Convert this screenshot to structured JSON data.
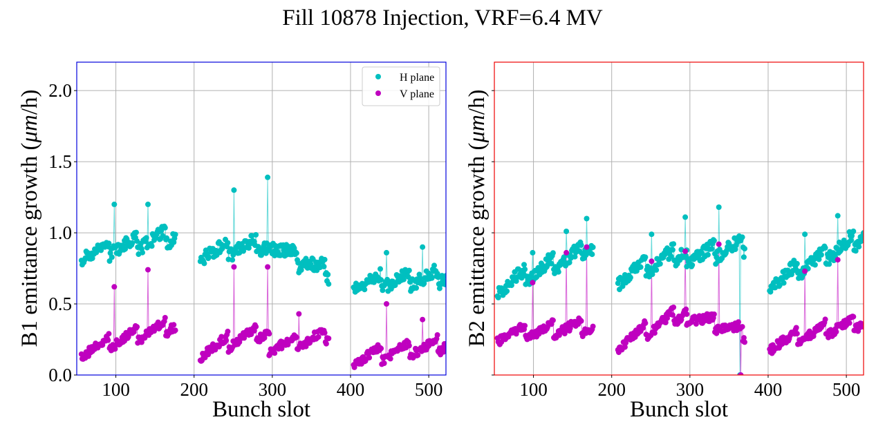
{
  "figure": {
    "title": "Fill 10878 Injection, VRF=6.4 MV"
  },
  "colors": {
    "h_plane": "#00bfbf",
    "v_plane": "#bf00bf",
    "b1_frame": "#0000dd",
    "b2_frame": "#ee0000",
    "grid": "#b0b0b0"
  },
  "chart_data": [
    {
      "type": "scatter",
      "panel": "B1",
      "title": "",
      "xlabel": "Bunch slot",
      "ylabel": "B1 emittance growth (μm/h)",
      "ylabel_parts": [
        "B1 emittance growth (",
        "μm",
        "/h)"
      ],
      "xlim": [
        50,
        522
      ],
      "ylim": [
        0,
        2.2
      ],
      "xticks": [
        100,
        200,
        300,
        400,
        500
      ],
      "xtick_labels": [
        "100",
        "200",
        "300",
        "400",
        "500"
      ],
      "yticks": [
        0.0,
        0.5,
        1.0,
        1.5,
        2.0
      ],
      "ytick_labels": [
        "0.0",
        "0.5",
        "1.0",
        "1.5",
        "2.0"
      ],
      "grid": true,
      "legend": {
        "position": "top-right",
        "entries": [
          "H plane",
          "V plane"
        ]
      },
      "trains": [
        {
          "start": 56,
          "end": 176,
          "h_start": 0.86,
          "h_end": 0.98,
          "v_start": 0.17,
          "v_end": 0.36
        },
        {
          "start": 208,
          "end": 296,
          "h_start": 0.86,
          "h_end": 0.92,
          "v_start": 0.17,
          "v_end": 0.32
        },
        {
          "start": 296,
          "end": 372,
          "h_start": 0.93,
          "h_end": 0.72,
          "v_start": 0.2,
          "v_end": 0.28
        },
        {
          "start": 404,
          "end": 522,
          "h_start": 0.64,
          "h_end": 0.7,
          "v_start": 0.12,
          "v_end": 0.22
        }
      ],
      "outliers": [
        {
          "slot": 98,
          "h": 1.2,
          "v": 0.62
        },
        {
          "slot": 141,
          "h": 1.2,
          "v": 0.74
        },
        {
          "slot": 251,
          "h": 1.3,
          "v": 0.76
        },
        {
          "slot": 294,
          "h": 1.39,
          "v": 0.76
        },
        {
          "slot": 334,
          "h": 0.72,
          "v": 0.43
        },
        {
          "slot": 446,
          "h": 0.86,
          "v": 0.5
        },
        {
          "slot": 492,
          "h": 0.9,
          "v": 0.39
        }
      ],
      "series": [
        {
          "name": "H plane",
          "level_range": [
            0.5,
            1.4
          ]
        },
        {
          "name": "V plane",
          "level_range": [
            0.05,
            0.76
          ]
        }
      ]
    },
    {
      "type": "scatter",
      "panel": "B2",
      "title": "",
      "xlabel": "Bunch slot",
      "ylabel": "B2 emittance growth (μm/h)",
      "ylabel_parts": [
        "B2 emittance growth (",
        "μm",
        "/h)"
      ],
      "xlim": [
        50,
        522
      ],
      "ylim": [
        0,
        2.2
      ],
      "xticks": [
        100,
        200,
        300,
        400,
        500
      ],
      "xtick_labels": [
        "100",
        "200",
        "300",
        "400",
        "500"
      ],
      "yticks": [
        0.0,
        0.5,
        1.0,
        1.5,
        2.0
      ],
      "ytick_labels": [
        "",
        "",
        "",
        "",
        ""
      ],
      "grid": true,
      "trains": [
        {
          "start": 54,
          "end": 176,
          "h_start": 0.62,
          "h_end": 0.9,
          "v_start": 0.28,
          "v_end": 0.35
        },
        {
          "start": 208,
          "end": 296,
          "h_start": 0.68,
          "h_end": 0.88,
          "v_start": 0.22,
          "v_end": 0.45
        },
        {
          "start": 296,
          "end": 370,
          "h_start": 0.82,
          "h_end": 0.92,
          "v_start": 0.42,
          "v_end": 0.3
        },
        {
          "start": 402,
          "end": 522,
          "h_start": 0.64,
          "h_end": 0.98,
          "v_start": 0.22,
          "v_end": 0.38
        }
      ],
      "outliers": [
        {
          "slot": 99,
          "h": 0.86,
          "v": 0.65
        },
        {
          "slot": 142,
          "h": 1.01,
          "v": 0.86
        },
        {
          "slot": 168,
          "h": 1.1,
          "v": 0.9
        },
        {
          "slot": 251,
          "h": 0.99,
          "v": 0.8
        },
        {
          "slot": 294,
          "h": 1.11,
          "v": 0.87
        },
        {
          "slot": 337,
          "h": 1.18,
          "v": 0.92
        },
        {
          "slot": 447,
          "h": 0.99,
          "v": 0.73
        },
        {
          "slot": 489,
          "h": 1.12,
          "v": 0.81
        }
      ],
      "dropouts": [
        {
          "slot": 364,
          "plane": "H",
          "value": 0.0
        },
        {
          "slot": 365,
          "plane": "V",
          "value": 0.0
        }
      ],
      "series": [
        {
          "name": "H plane",
          "level_range": [
            0.45,
            1.2
          ]
        },
        {
          "name": "V plane",
          "level_range": [
            0.0,
            0.92
          ]
        }
      ]
    }
  ]
}
